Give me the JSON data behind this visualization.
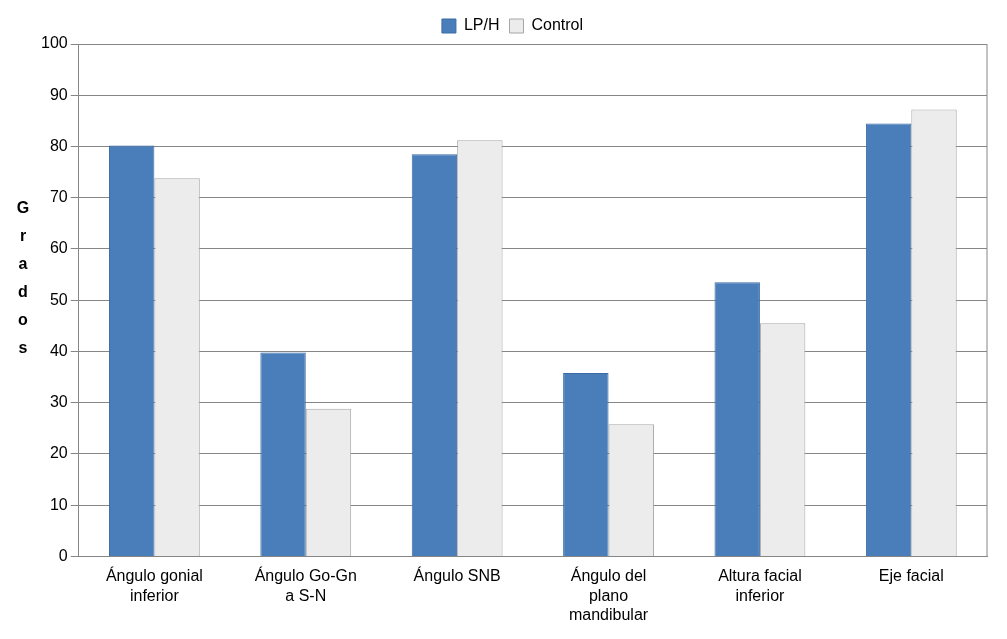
{
  "chart_data": {
    "type": "bar",
    "ylabel": "Grados",
    "categories": [
      "Ángulo gonial inferior",
      "Ángulo Go-Gn a S-N",
      "Ángulo SNB",
      "Ángulo del plano mandibular",
      "Altura facial inferior",
      "Eje facial"
    ],
    "series": [
      {
        "name": "LP/H",
        "color": "#4a7ebb",
        "values": [
          80.2,
          39.8,
          78.5,
          35.8,
          53.5,
          84.5
        ]
      },
      {
        "name": "Control",
        "color": "#ececec",
        "values": [
          73.8,
          28.8,
          81.2,
          25.8,
          45.5,
          87.2
        ]
      }
    ],
    "ylim": [
      0,
      100
    ],
    "yticks": [
      0,
      10,
      20,
      30,
      40,
      50,
      60,
      70,
      80,
      90,
      100
    ],
    "grid": "y",
    "legend": "top"
  }
}
